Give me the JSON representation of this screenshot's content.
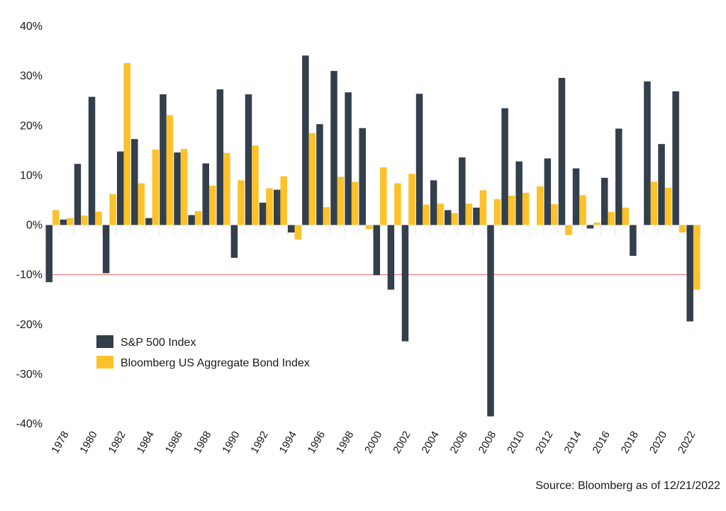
{
  "chart_data": {
    "type": "bar",
    "title": "",
    "xlabel": "",
    "ylabel": "",
    "ylim": [
      -40,
      40
    ],
    "y_ticks": [
      40,
      30,
      20,
      10,
      0,
      -10,
      -20,
      -30,
      -40
    ],
    "y_tick_labels": [
      "40%",
      "30%",
      "20%",
      "10%",
      "0%",
      "-10%",
      "-20%",
      "-30%",
      "-40%"
    ],
    "categories": [
      "1977",
      "1978",
      "1979",
      "1980",
      "1981",
      "1982",
      "1983",
      "1984",
      "1985",
      "1986",
      "1987",
      "1988",
      "1989",
      "1990",
      "1991",
      "1992",
      "1993",
      "1994",
      "1995",
      "1996",
      "1997",
      "1998",
      "1999",
      "2000",
      "2001",
      "2002",
      "2003",
      "2004",
      "2005",
      "2006",
      "2007",
      "2008",
      "2009",
      "2010",
      "2011",
      "2012",
      "2013",
      "2014",
      "2015",
      "2016",
      "2017",
      "2018",
      "2019",
      "2020",
      "2021",
      "2022"
    ],
    "x_tick_labels": [
      "1978",
      "1980",
      "1982",
      "1984",
      "1986",
      "1988",
      "1990",
      "1992",
      "1994",
      "1996",
      "1998",
      "2000",
      "2002",
      "2004",
      "2006",
      "2008",
      "2010",
      "2012",
      "2014",
      "2016",
      "2018",
      "2020",
      "2022"
    ],
    "series": [
      {
        "name": "S&P 500 Index",
        "color": "#333f4b",
        "values": [
          -11.5,
          1.1,
          12.3,
          25.8,
          -9.7,
          14.8,
          17.3,
          1.4,
          26.3,
          14.6,
          2.0,
          12.4,
          27.3,
          -6.6,
          26.3,
          4.5,
          7.1,
          -1.5,
          34.1,
          20.3,
          31.0,
          26.7,
          19.5,
          -10.1,
          -13.0,
          -23.4,
          26.4,
          9.0,
          3.0,
          13.6,
          3.5,
          -38.5,
          23.5,
          12.8,
          0.0,
          13.4,
          29.6,
          11.4,
          -0.7,
          9.5,
          19.4,
          -6.2,
          28.9,
          16.3,
          26.9,
          -19.4
        ]
      },
      {
        "name": "Bloomberg US Aggregate Bond Index",
        "color": "#fdc12a",
        "values": [
          3.0,
          1.4,
          1.9,
          2.7,
          6.2,
          32.6,
          8.4,
          15.2,
          22.1,
          15.3,
          2.8,
          7.9,
          14.5,
          9.0,
          16.0,
          7.4,
          9.8,
          -2.9,
          18.5,
          3.6,
          9.7,
          8.7,
          -0.8,
          11.6,
          8.4,
          10.3,
          4.1,
          4.3,
          2.4,
          4.3,
          7.0,
          5.2,
          5.9,
          6.5,
          7.8,
          4.2,
          -2.0,
          6.0,
          0.5,
          2.6,
          3.5,
          0.0,
          8.7,
          7.5,
          -1.5,
          -13.0
        ]
      }
    ],
    "reference_line": {
      "value": -10,
      "color": "#e46464"
    },
    "legend_position": "lower-left",
    "source": "Source: Bloomberg as of 12/21/2022"
  }
}
